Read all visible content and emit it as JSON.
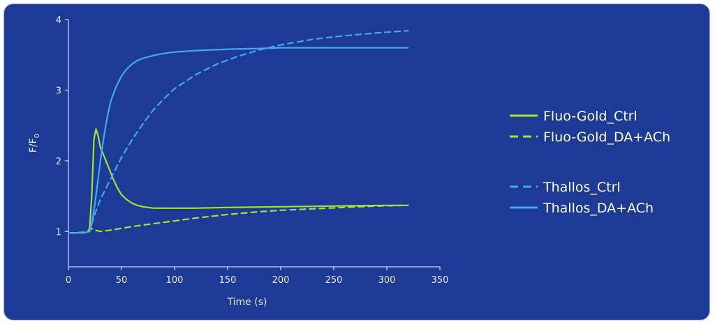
{
  "chart_data": {
    "type": "line",
    "title": "",
    "xlabel": "Time (s)",
    "ylabel_main": "F/F",
    "ylabel_sub": "0",
    "xlim": [
      0,
      350
    ],
    "ylim": [
      0.5,
      4
    ],
    "xticks": [
      0,
      50,
      100,
      150,
      200,
      250,
      300,
      350
    ],
    "yticks": [
      1,
      2,
      3,
      4
    ],
    "grid": false,
    "legend_position": "right",
    "series": [
      {
        "name": "Fluo-Gold_Ctrl",
        "color": "#a6e22e",
        "dash": "solid",
        "x": [
          0,
          10,
          18,
          20,
          22,
          24,
          26,
          28,
          30,
          34,
          38,
          42,
          46,
          50,
          55,
          60,
          65,
          70,
          80,
          90,
          100,
          120,
          150,
          200,
          250,
          300,
          320
        ],
        "y": [
          0.98,
          0.98,
          0.99,
          1.05,
          1.5,
          2.3,
          2.45,
          2.35,
          2.2,
          2.05,
          1.9,
          1.75,
          1.62,
          1.52,
          1.45,
          1.4,
          1.37,
          1.35,
          1.33,
          1.33,
          1.33,
          1.33,
          1.34,
          1.35,
          1.36,
          1.37,
          1.37
        ]
      },
      {
        "name": "Fluo-Gold_DA+ACh",
        "color": "#a6e22e",
        "dash": "dashed",
        "x": [
          0,
          18,
          20,
          22,
          25,
          30,
          40,
          60,
          80,
          100,
          120,
          150,
          180,
          200,
          230,
          260,
          290,
          320
        ],
        "y": [
          0.98,
          0.99,
          1.02,
          1.04,
          1.02,
          1.0,
          1.02,
          1.07,
          1.11,
          1.15,
          1.19,
          1.24,
          1.28,
          1.3,
          1.32,
          1.34,
          1.36,
          1.37
        ]
      },
      {
        "name": "Thallos_Ctrl",
        "color": "#3fa9f5",
        "dash": "dashed",
        "x": [
          0,
          15,
          20,
          22,
          25,
          30,
          40,
          50,
          60,
          70,
          80,
          90,
          100,
          120,
          140,
          160,
          180,
          200,
          230,
          260,
          290,
          320
        ],
        "y": [
          0.98,
          0.98,
          1.0,
          1.1,
          1.25,
          1.45,
          1.75,
          2.05,
          2.3,
          2.52,
          2.72,
          2.88,
          3.02,
          3.22,
          3.37,
          3.48,
          3.57,
          3.64,
          3.72,
          3.77,
          3.81,
          3.84
        ]
      },
      {
        "name": "Thallos_DA+ACh",
        "color": "#3fa9f5",
        "dash": "solid",
        "x": [
          0,
          15,
          20,
          22,
          25,
          28,
          31,
          34,
          37,
          40,
          45,
          50,
          55,
          60,
          65,
          70,
          80,
          90,
          100,
          120,
          150,
          180,
          200,
          250,
          300,
          320
        ],
        "y": [
          0.98,
          0.98,
          1.0,
          1.1,
          1.4,
          1.75,
          2.1,
          2.4,
          2.65,
          2.85,
          3.05,
          3.2,
          3.3,
          3.37,
          3.42,
          3.45,
          3.49,
          3.52,
          3.54,
          3.56,
          3.58,
          3.59,
          3.6,
          3.6,
          3.6,
          3.6
        ]
      }
    ]
  }
}
